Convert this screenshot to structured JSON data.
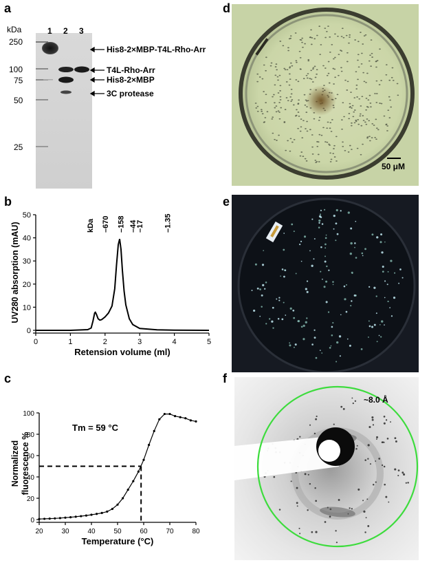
{
  "panel_labels": {
    "a": "a",
    "b": "b",
    "c": "c",
    "d": "d",
    "e": "e",
    "f": "f"
  },
  "gel": {
    "unit": "kDa",
    "lanes": [
      "1",
      "2",
      "3"
    ],
    "markers": [
      "250",
      "100",
      "75",
      "50",
      "25"
    ],
    "annotations": [
      "His8-2×MBP-T4L-Rho-Arr",
      "T4L-Rho-Arr",
      "His8-2×MBP",
      "3C protease"
    ]
  },
  "micrograph": {
    "scale_bar": "50 μM"
  },
  "diffraction": {
    "resolution": "~8.0 Å",
    "ring_color": "#3ddc3d"
  },
  "chart_data": [
    {
      "type": "line",
      "xlabel": "Retension volume (ml)",
      "ylabel": "UV280 absorption (mAU)",
      "xlim": [
        0,
        5
      ],
      "ylim": [
        0,
        50
      ],
      "x_ticks": [
        "0",
        "1",
        "2",
        "3",
        "4",
        "5"
      ],
      "y_ticks": [
        "0",
        "10",
        "20",
        "30",
        "40",
        "50"
      ],
      "x": [
        0,
        0.5,
        1.0,
        1.5,
        1.6,
        1.65,
        1.7,
        1.72,
        1.75,
        1.8,
        1.85,
        1.9,
        2.0,
        2.1,
        2.2,
        2.28,
        2.33,
        2.38,
        2.42,
        2.46,
        2.5,
        2.55,
        2.6,
        2.7,
        2.8,
        3.0,
        3.5,
        4.0,
        5.0
      ],
      "y": [
        0,
        0,
        0,
        0.3,
        1.0,
        4.0,
        7.5,
        7.8,
        7.0,
        5.0,
        4.4,
        4.6,
        5.8,
        7.5,
        10.5,
        18,
        28,
        37,
        39.5,
        35,
        26,
        17,
        11,
        5,
        2.5,
        0.8,
        0.2,
        0.1,
        0
      ],
      "markers_label": "kDa",
      "markers": [
        {
          "label": "670",
          "x": 2.0
        },
        {
          "label": "158",
          "x": 2.45
        },
        {
          "label": "44",
          "x": 2.8
        },
        {
          "label": "17",
          "x": 3.0
        },
        {
          "label": "1.35",
          "x": 3.8
        }
      ]
    },
    {
      "type": "line",
      "xlabel": "Temperature (°C)",
      "ylabel": "Normalized fluorescence %",
      "xlim": [
        20,
        80
      ],
      "ylim": [
        0,
        100
      ],
      "x_ticks": [
        "20",
        "30",
        "40",
        "50",
        "60",
        "70",
        "80"
      ],
      "y_ticks": [
        "0",
        "20",
        "40",
        "60",
        "80",
        "100"
      ],
      "annotation": "Tm = 59 °C",
      "tm": 59,
      "tm_y": 50,
      "x": [
        20,
        22,
        24,
        26,
        28,
        30,
        32,
        34,
        36,
        38,
        40,
        42,
        44,
        46,
        48,
        50,
        52,
        54,
        56,
        58,
        60,
        62,
        64,
        66,
        68,
        70,
        72,
        74,
        76,
        78,
        80
      ],
      "y": [
        0.5,
        0.7,
        0.9,
        1.1,
        1.4,
        1.8,
        2.2,
        2.7,
        3.2,
        3.8,
        4.5,
        5.3,
        6.2,
        7.5,
        10,
        14,
        20,
        28,
        36,
        45,
        56,
        70,
        83,
        94,
        99,
        99,
        97,
        96,
        95,
        93,
        92
      ]
    }
  ]
}
